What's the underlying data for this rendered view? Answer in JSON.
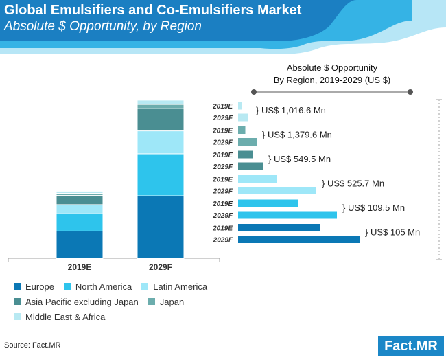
{
  "header": {
    "title": "Global Emulsifiers and Co-Emulsifiers Market",
    "subtitle": "Absolute $ Opportunity, by Region"
  },
  "colors": {
    "header_dark": "#1b7fc2",
    "header_mid": "#35b3e5",
    "header_light": "#b7e6f6",
    "Europe": "#0b78b5",
    "North America": "#2ec4ec",
    "Latin America": "#9ee7f8",
    "Asia Pacific excluding Japan": "#4a8e92",
    "Japan": "#6cadad",
    "Middle East & Africa": "#b8e9f2",
    "axis": "#a0a0a0",
    "slider": "#555555"
  },
  "chart_data": [
    {
      "type": "bar",
      "stacked": true,
      "title": "",
      "categories": [
        "2019E",
        "2029F"
      ],
      "series": [
        {
          "name": "Europe",
          "values": [
            38.5,
            88.5
          ]
        },
        {
          "name": "North America",
          "values": [
            24.5,
            59.5
          ]
        },
        {
          "name": "Latin America",
          "values": [
            13,
            32.5
          ]
        },
        {
          "name": "Asia Pacific excluding Japan",
          "values": [
            13,
            31.5
          ]
        },
        {
          "name": "Japan",
          "values": [
            3,
            6
          ]
        },
        {
          "name": "Middle East & Africa",
          "values": [
            3,
            6
          ]
        }
      ],
      "ylim": [
        0,
        220
      ],
      "xlabel": "",
      "ylabel": "",
      "legend_position": "bottom"
    },
    {
      "type": "bar",
      "orientation": "horizontal",
      "title": "Absolute $ Opportunity By Region, 2019-2029 (US $)",
      "title_lines": [
        "Absolute $ Opportunity",
        "By Region, 2019-2029 (US $)"
      ],
      "groups": [
        {
          "region": "Middle East & Africa",
          "opportunity": "} US$ 1,016.6 Mn",
          "bars": [
            {
              "label": "2019E",
              "value": 4
            },
            {
              "label": "2029F",
              "value": 10
            }
          ]
        },
        {
          "region": "Japan",
          "opportunity": "} US$ 1,379.6 Mn",
          "bars": [
            {
              "label": "2019E",
              "value": 7
            },
            {
              "label": "2029F",
              "value": 18
            }
          ]
        },
        {
          "region": "Asia Pacific excluding Japan",
          "opportunity": "} US$ 549.5 Mn",
          "bars": [
            {
              "label": "2019E",
              "value": 14
            },
            {
              "label": "2029F",
              "value": 24
            }
          ]
        },
        {
          "region": "Latin America",
          "opportunity": "} US$ 525.7 Mn",
          "bars": [
            {
              "label": "2019E",
              "value": 38
            },
            {
              "label": "2029F",
              "value": 76
            }
          ]
        },
        {
          "region": "North America",
          "opportunity": "} US$ 109.5 Mn",
          "bars": [
            {
              "label": "2019E",
              "value": 58
            },
            {
              "label": "2029F",
              "value": 96
            }
          ]
        },
        {
          "region": "Europe",
          "opportunity": "} US$ 105 Mn",
          "bars": [
            {
              "label": "2019E",
              "value": 80
            },
            {
              "label": "2029F",
              "value": 118
            }
          ]
        }
      ],
      "xlim": [
        0,
        120
      ]
    }
  ],
  "legend": {
    "rows": [
      [
        "Europe",
        "North America",
        "Latin America"
      ],
      [
        "Asia Pacific excluding Japan",
        "Japan"
      ],
      [
        "Middle East & Africa"
      ]
    ]
  },
  "footer": {
    "source": "Source: Fact.MR",
    "logo": "Fact.MR"
  }
}
